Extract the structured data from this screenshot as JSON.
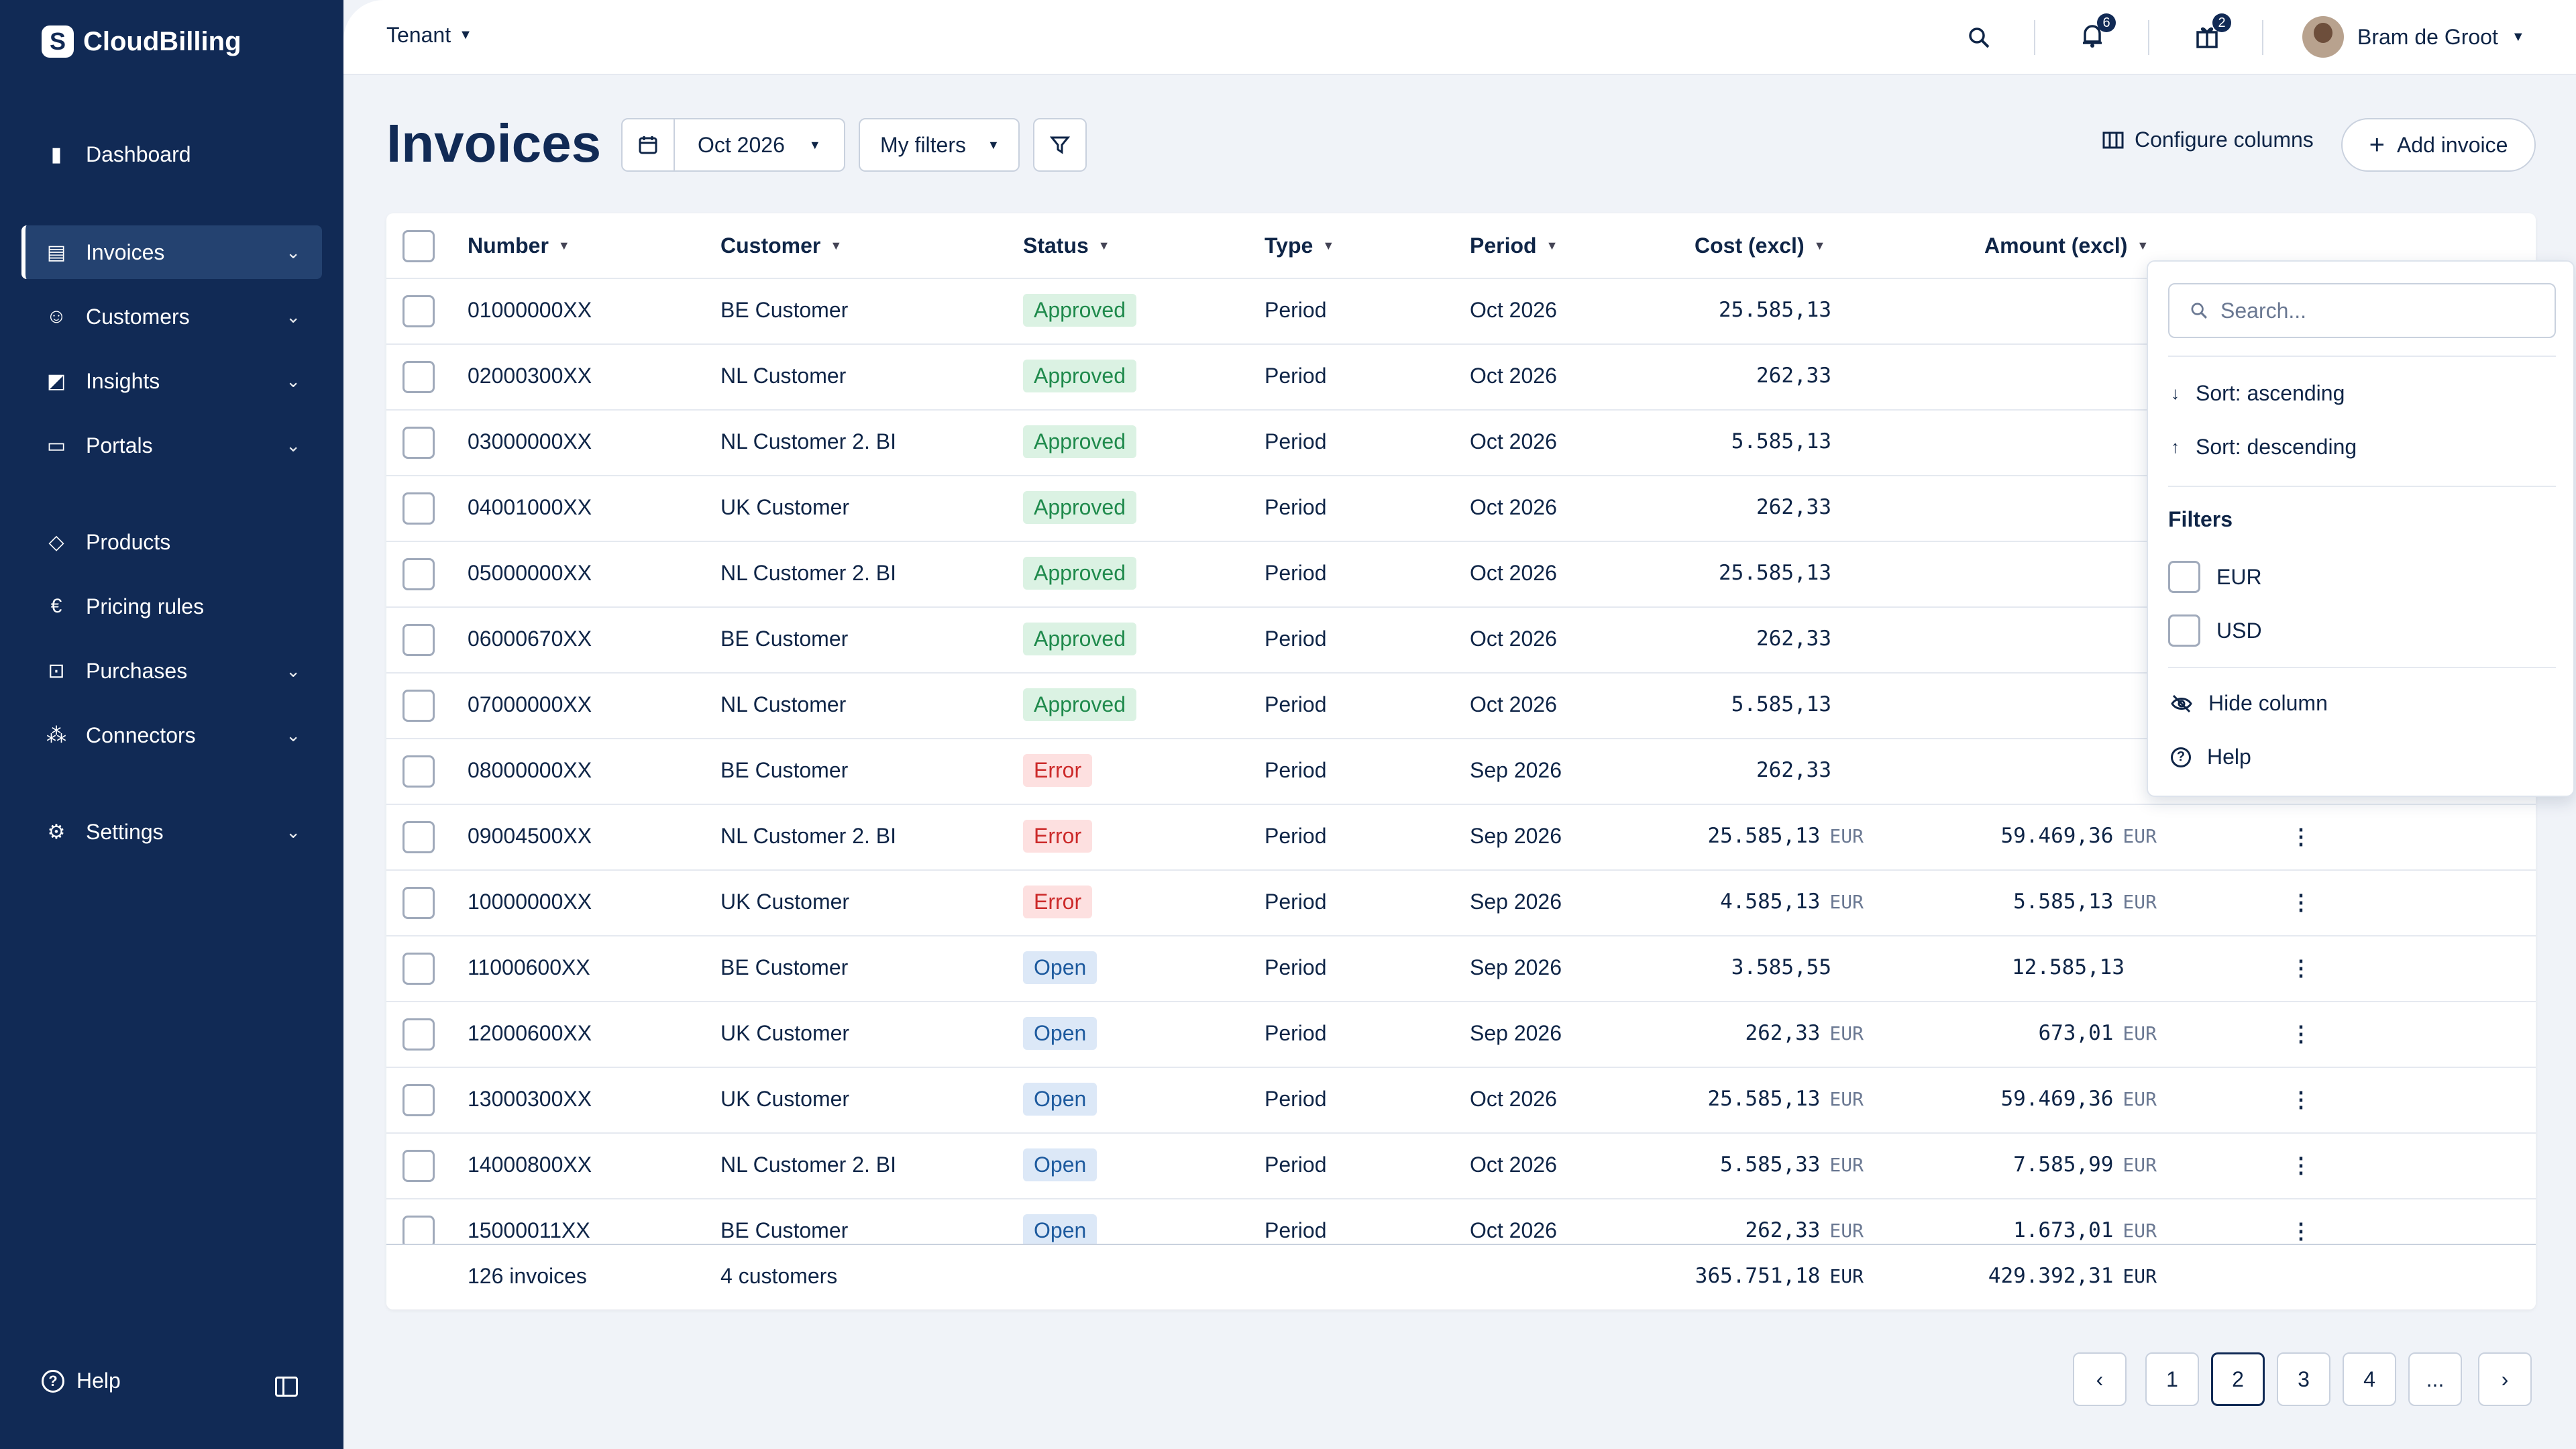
{
  "app": {
    "name": "CloudBilling",
    "logo_letter": "S"
  },
  "sidebar": {
    "items": [
      {
        "label": "Dashboard",
        "icon": "bar-chart-icon",
        "glyph": "▮",
        "expandable": false
      },
      {
        "label": "Invoices",
        "icon": "invoice-icon",
        "glyph": "▤",
        "expandable": true,
        "active": true
      },
      {
        "label": "Customers",
        "icon": "users-icon",
        "glyph": "☺",
        "expandable": true
      },
      {
        "label": "Insights",
        "icon": "insights-icon",
        "glyph": "◩",
        "expandable": true
      },
      {
        "label": "Portals",
        "icon": "portal-icon",
        "glyph": "▭",
        "expandable": true
      },
      {
        "label": "Products",
        "icon": "tag-icon",
        "glyph": "◇",
        "expandable": false
      },
      {
        "label": "Pricing rules",
        "icon": "euro-icon",
        "glyph": "€",
        "expandable": false
      },
      {
        "label": "Purchases",
        "icon": "purchase-icon",
        "glyph": "⊡",
        "expandable": true
      },
      {
        "label": "Connectors",
        "icon": "connectors-icon",
        "glyph": "⁂",
        "expandable": true
      },
      {
        "label": "Settings",
        "icon": "gear-icon",
        "glyph": "⚙",
        "expandable": true
      }
    ],
    "help_label": "Help"
  },
  "topbar": {
    "tenant_label": "Tenant",
    "notifications_count": "6",
    "gifts_count": "2",
    "user_name": "Bram de Groot"
  },
  "page": {
    "title": "Invoices",
    "period": "Oct 2026",
    "filters_label": "My filters",
    "configure_label": "Configure columns",
    "add_label": "Add invoice"
  },
  "table": {
    "columns": [
      "Number",
      "Customer",
      "Status",
      "Type",
      "Period",
      "Cost (excl)",
      "Amount (excl)"
    ],
    "rows": [
      {
        "number": "01000000XX",
        "customer": "BE Customer",
        "status": "Approved",
        "status_kind": "approved",
        "type": "Period",
        "period": "Oct 2026",
        "cost": "25.585,13",
        "cost_cur": "",
        "amount": "",
        "amount_cur": ""
      },
      {
        "number": "02000300XX",
        "customer": "NL Customer",
        "status": "Approved",
        "status_kind": "approved",
        "type": "Period",
        "period": "Oct 2026",
        "cost": "262,33",
        "cost_cur": "",
        "amount": "",
        "amount_cur": ""
      },
      {
        "number": "03000000XX",
        "customer": "NL Customer 2. BI",
        "status": "Approved",
        "status_kind": "approved",
        "type": "Period",
        "period": "Oct 2026",
        "cost": "5.585,13",
        "cost_cur": "",
        "amount": "",
        "amount_cur": ""
      },
      {
        "number": "04001000XX",
        "customer": "UK Customer",
        "status": "Approved",
        "status_kind": "approved",
        "type": "Period",
        "period": "Oct 2026",
        "cost": "262,33",
        "cost_cur": "",
        "amount": "",
        "amount_cur": ""
      },
      {
        "number": "05000000XX",
        "customer": "NL Customer 2. BI",
        "status": "Approved",
        "status_kind": "approved",
        "type": "Period",
        "period": "Oct 2026",
        "cost": "25.585,13",
        "cost_cur": "",
        "amount": "",
        "amount_cur": ""
      },
      {
        "number": "06000670XX",
        "customer": "BE Customer",
        "status": "Approved",
        "status_kind": "approved",
        "type": "Period",
        "period": "Oct 2026",
        "cost": "262,33",
        "cost_cur": "",
        "amount": "",
        "amount_cur": ""
      },
      {
        "number": "07000000XX",
        "customer": "NL Customer",
        "status": "Approved",
        "status_kind": "approved",
        "type": "Period",
        "period": "Oct 2026",
        "cost": "5.585,13",
        "cost_cur": "",
        "amount": "",
        "amount_cur": ""
      },
      {
        "number": "08000000XX",
        "customer": "BE Customer",
        "status": "Error",
        "status_kind": "error",
        "type": "Period",
        "period": "Sep 2026",
        "cost": "262,33",
        "cost_cur": "",
        "amount": "",
        "amount_cur": ""
      },
      {
        "number": "09004500XX",
        "customer": "NL Customer 2. BI",
        "status": "Error",
        "status_kind": "error",
        "type": "Period",
        "period": "Sep 2026",
        "cost": "25.585,13",
        "cost_cur": "EUR",
        "amount": "59.469,36",
        "amount_cur": "EUR"
      },
      {
        "number": "10000000XX",
        "customer": "UK Customer",
        "status": "Error",
        "status_kind": "error",
        "type": "Period",
        "period": "Sep 2026",
        "cost": "4.585,13",
        "cost_cur": "EUR",
        "amount": "5.585,13",
        "amount_cur": "EUR"
      },
      {
        "number": "11000600XX",
        "customer": "BE Customer",
        "status": "Open",
        "status_kind": "open",
        "type": "Period",
        "period": "Sep 2026",
        "cost": "3.585,55",
        "cost_cur": "",
        "amount": "12.585,13",
        "amount_cur": ""
      },
      {
        "number": "12000600XX",
        "customer": "UK Customer",
        "status": "Open",
        "status_kind": "open",
        "type": "Period",
        "period": "Sep 2026",
        "cost": "262,33",
        "cost_cur": "EUR",
        "amount": "673,01",
        "amount_cur": "EUR"
      },
      {
        "number": "13000300XX",
        "customer": "UK Customer",
        "status": "Open",
        "status_kind": "open",
        "type": "Period",
        "period": "Oct 2026",
        "cost": "25.585,13",
        "cost_cur": "EUR",
        "amount": "59.469,36",
        "amount_cur": "EUR"
      },
      {
        "number": "14000800XX",
        "customer": "NL Customer 2. BI",
        "status": "Open",
        "status_kind": "open",
        "type": "Period",
        "period": "Oct 2026",
        "cost": "5.585,33",
        "cost_cur": "EUR",
        "amount": "7.585,99",
        "amount_cur": "EUR"
      },
      {
        "number": "15000011XX",
        "customer": "BE Customer",
        "status": "Open",
        "status_kind": "open",
        "type": "Period",
        "period": "Oct 2026",
        "cost": "262,33",
        "cost_cur": "EUR",
        "amount": "1.673,01",
        "amount_cur": "EUR"
      }
    ],
    "footer": {
      "invoices": "126 invoices",
      "customers": "4 customers",
      "cost_total": "365.751,18",
      "cost_cur": "EUR",
      "amount_total": "429.392,31",
      "amount_cur": "EUR"
    }
  },
  "dropdown": {
    "search_placeholder": "Search...",
    "sort_asc": "Sort: ascending",
    "sort_desc": "Sort: descending",
    "filters_heading": "Filters",
    "filter_options": [
      "EUR",
      "USD"
    ],
    "hide_column": "Hide column",
    "help": "Help"
  },
  "pagination": {
    "pages": [
      "1",
      "2",
      "3",
      "4",
      "..."
    ],
    "current": "2"
  },
  "colors": {
    "sidebar": "#112a55",
    "accent": "#112a55",
    "approved": "#1f8a4c",
    "error": "#cc2a2a",
    "open": "#1d5a9e"
  }
}
